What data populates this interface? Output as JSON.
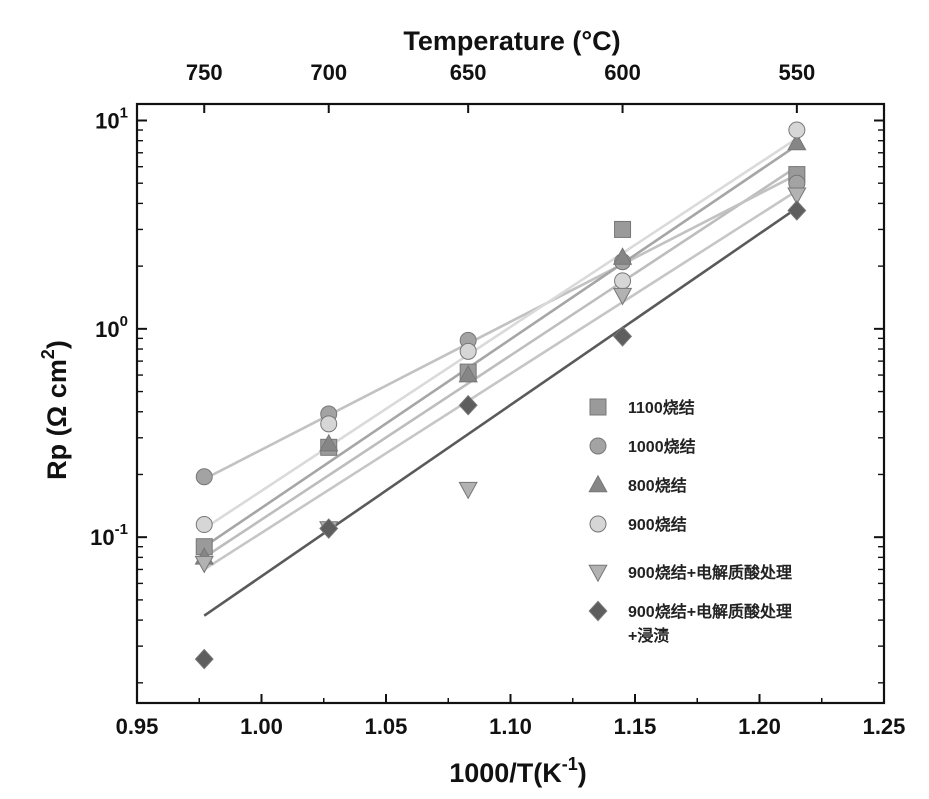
{
  "chart_data": {
    "type": "scatter",
    "title": "",
    "xlabel": "1000/T(K",
    "xlabel_sup": "-1",
    "xlabel_suffix": ")",
    "ylabel": "Rp (Ω cm",
    "ylabel_sup": "2",
    "ylabel_suffix": ")",
    "top_xlabel": "Temperature (°C)",
    "xlim": [
      0.95,
      1.25
    ],
    "ylim": [
      0.016,
      12
    ],
    "yscale": "log",
    "grid": false,
    "legend_position": "right-center",
    "x_ticks": [
      {
        "value": 0.95,
        "label": "0.95"
      },
      {
        "value": 1.0,
        "label": "1.00"
      },
      {
        "value": 1.05,
        "label": "1.05"
      },
      {
        "value": 1.1,
        "label": "1.10"
      },
      {
        "value": 1.15,
        "label": "1.15"
      },
      {
        "value": 1.2,
        "label": "1.20"
      },
      {
        "value": 1.25,
        "label": "1.25"
      }
    ],
    "y_ticks": [
      {
        "value": 10,
        "base": "10",
        "exp": "1"
      },
      {
        "value": 1,
        "base": "10",
        "exp": "0"
      },
      {
        "value": 0.1,
        "base": "10",
        "exp": "-1"
      }
    ],
    "top_ticks": [
      {
        "label": "750",
        "x": 0.977
      },
      {
        "label": "700",
        "x": 1.027
      },
      {
        "label": "650",
        "x": 1.083
      },
      {
        "label": "600",
        "x": 1.145
      },
      {
        "label": "550",
        "x": 1.215
      }
    ],
    "x": [
      0.977,
      1.027,
      1.083,
      1.145,
      1.215
    ],
    "series": [
      {
        "name": "1100烧结",
        "marker": "square",
        "color": "#9a9a9a",
        "line_color": "#bdbdbd",
        "values": [
          0.09,
          0.27,
          0.62,
          3.0,
          5.5
        ],
        "fit": [
          0.08,
          6.0
        ]
      },
      {
        "name": "1000烧结",
        "marker": "circle",
        "color": "#a3a3a3",
        "line_color": "#c2c2c2",
        "values": [
          0.195,
          0.39,
          0.88,
          2.1,
          5.0
        ],
        "fit": [
          0.19,
          5.5
        ]
      },
      {
        "name": "800烧结",
        "marker": "triangle-up",
        "color": "#868686",
        "line_color": "#a6a6a6",
        "values": [
          0.08,
          0.28,
          0.6,
          2.2,
          7.8
        ],
        "fit": [
          0.09,
          7.6
        ]
      },
      {
        "name": "900烧结",
        "marker": "circle",
        "color": "#d6d6d6",
        "line_color": "#dadada",
        "values": [
          0.115,
          0.35,
          0.78,
          1.7,
          9.0
        ],
        "fit": [
          0.11,
          8.2
        ]
      },
      {
        "name": "900烧结+电解质酸处理",
        "marker": "triangle-down",
        "color": "#b2b2b2",
        "line_color": "#c6c6c6",
        "values": [
          0.075,
          0.11,
          0.17,
          1.45,
          4.4
        ],
        "fit": [
          0.07,
          4.6
        ]
      },
      {
        "name": "900烧结+电解质酸处理+浸渍",
        "marker": "diamond",
        "color": "#5e5e5e",
        "line_color": "#5a5a5a",
        "values": [
          0.026,
          0.11,
          0.43,
          0.92,
          3.7
        ],
        "fit": [
          0.042,
          3.8
        ]
      }
    ]
  }
}
